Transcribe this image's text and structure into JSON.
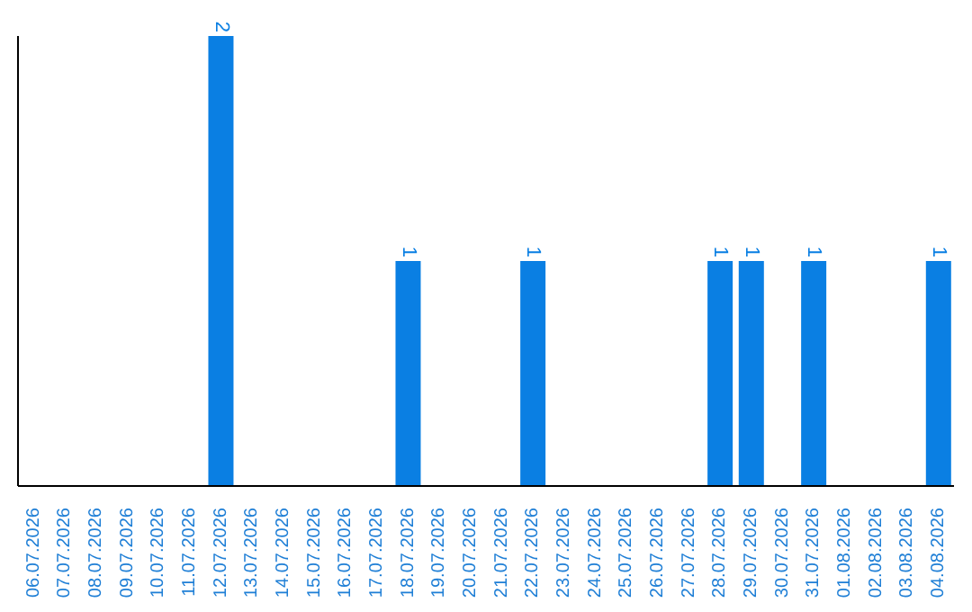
{
  "chart_data": {
    "type": "bar",
    "categories": [
      "06.07.2026",
      "07.07.2026",
      "08.07.2026",
      "09.07.2026",
      "10.07.2026",
      "11.07.2026",
      "12.07.2026",
      "13.07.2026",
      "14.07.2026",
      "15.07.2026",
      "16.07.2026",
      "17.07.2026",
      "18.07.2026",
      "19.07.2026",
      "20.07.2026",
      "21.07.2026",
      "22.07.2026",
      "23.07.2026",
      "24.07.2026",
      "25.07.2026",
      "26.07.2026",
      "27.07.2026",
      "28.07.2026",
      "29.07.2026",
      "30.07.2026",
      "31.07.2026",
      "01.08.2026",
      "02.08.2026",
      "03.08.2026",
      "04.08.2026"
    ],
    "values": [
      0,
      0,
      0,
      0,
      0,
      0,
      2,
      0,
      0,
      0,
      0,
      0,
      1,
      0,
      0,
      0,
      1,
      0,
      0,
      0,
      0,
      0,
      1,
      1,
      0,
      1,
      0,
      0,
      0,
      1
    ],
    "value_labels": [
      null,
      null,
      null,
      null,
      null,
      null,
      "2",
      null,
      null,
      null,
      null,
      null,
      "1",
      null,
      null,
      null,
      "1",
      null,
      null,
      null,
      null,
      null,
      "1",
      "1",
      null,
      "1",
      null,
      null,
      null,
      "1"
    ],
    "color": "#0a7fe3",
    "relative": false,
    "grid": false
  }
}
